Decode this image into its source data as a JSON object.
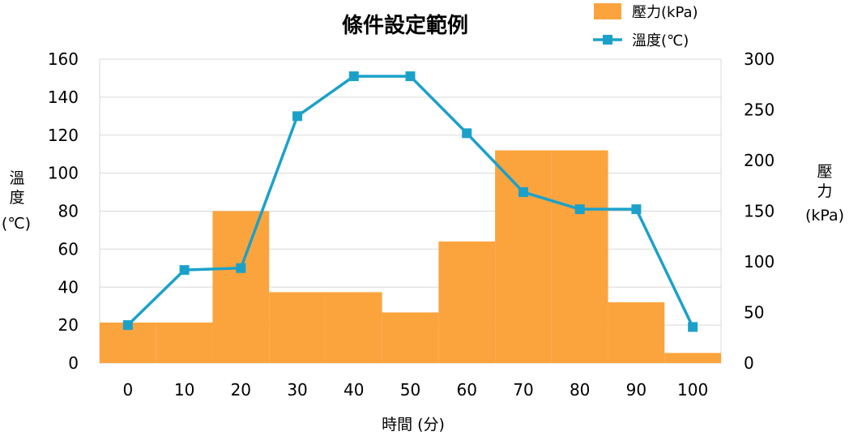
{
  "chart_data": {
    "type": "bar+line",
    "title": "條件設定範例",
    "xlabel": "時間 (分)",
    "categories": [
      "0",
      "10",
      "20",
      "30",
      "40",
      "50",
      "60",
      "70",
      "80",
      "90",
      "100"
    ],
    "y_left": {
      "label_lines": [
        "溫",
        "度",
        "(℃)"
      ],
      "ylim": [
        0,
        160
      ],
      "ticks": [
        "0",
        "20",
        "40",
        "60",
        "80",
        "100",
        "120",
        "140",
        "160"
      ]
    },
    "y_right": {
      "label_lines": [
        "壓",
        "力",
        "(kPa)"
      ],
      "ylim": [
        0,
        300
      ],
      "ticks": [
        "0",
        "50",
        "100",
        "150",
        "200",
        "250",
        "300"
      ]
    },
    "series": [
      {
        "name": "壓力(kPa)",
        "type": "bar",
        "axis": "right",
        "color": "#FBA43E",
        "values": [
          40,
          40,
          150,
          70,
          70,
          50,
          120,
          210,
          210,
          60,
          10
        ]
      },
      {
        "name": "溫度(℃)",
        "type": "line",
        "axis": "left",
        "color": "#1BA1C9",
        "values": [
          20,
          49,
          50,
          130,
          151,
          151,
          121,
          90,
          81,
          81,
          19
        ]
      }
    ],
    "grid": "horizontal",
    "legend_position": "top-right"
  }
}
